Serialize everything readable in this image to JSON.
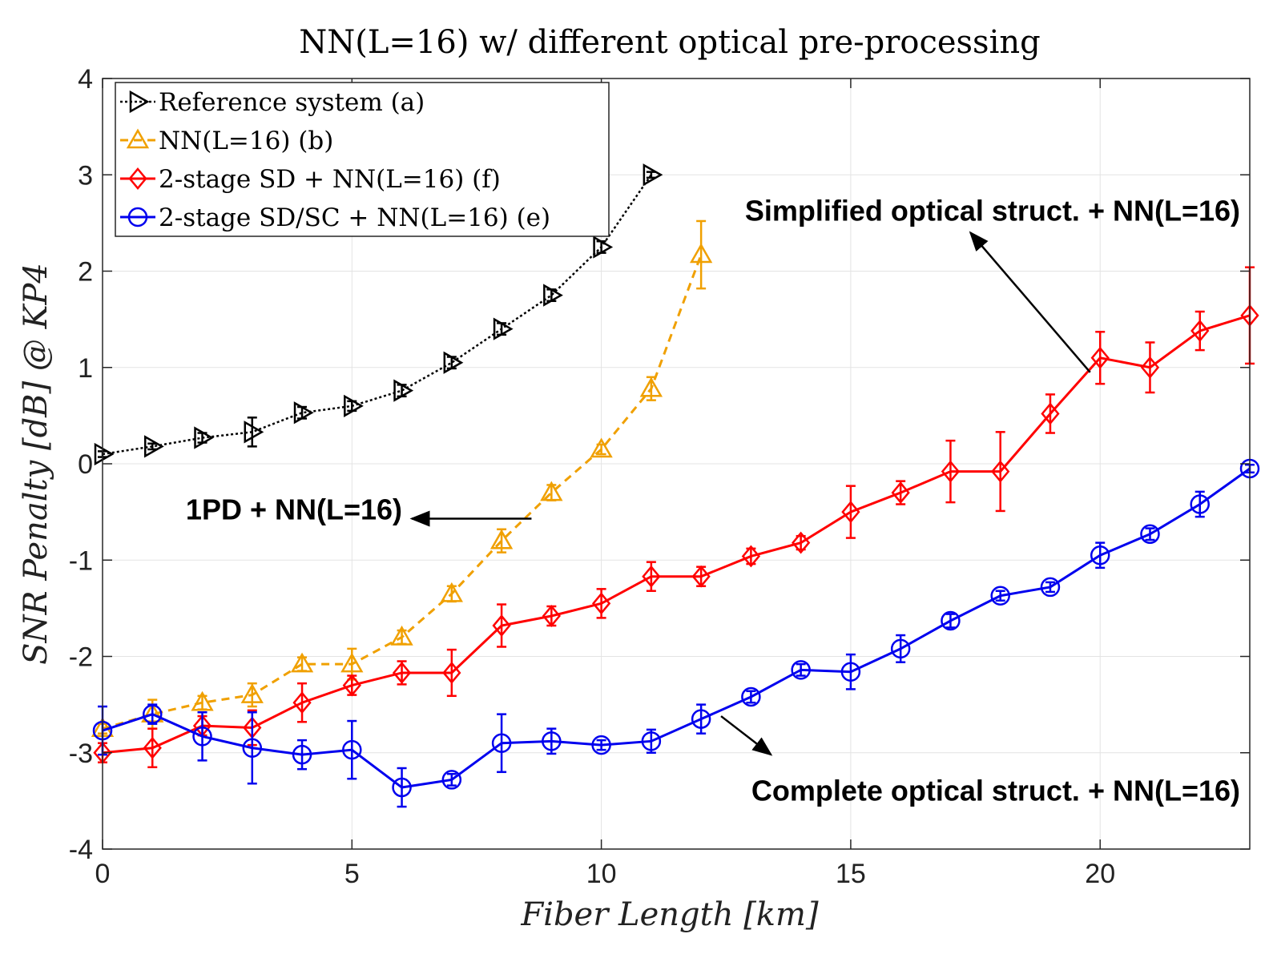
{
  "chart_data": {
    "type": "line",
    "title": "NN(L=16) w/ different optical pre-processing",
    "xlabel": "Fiber Length [km]",
    "ylabel": "SNR Penalty [dB] @ KP4",
    "xlim": [
      0,
      23
    ],
    "ylim": [
      -4,
      4
    ],
    "xticks": [
      "0",
      "5",
      "10",
      "15",
      "20"
    ],
    "yticks": [
      "-4",
      "-3",
      "-2",
      "-1",
      "0",
      "1",
      "2",
      "3",
      "4"
    ],
    "grid": true,
    "legend_position": "top-left",
    "series": [
      {
        "name": "Reference system (a)",
        "color": "#000000",
        "line_style": "dotted",
        "marker": "triangle-right",
        "x": [
          0,
          1,
          2,
          3,
          4,
          5,
          6,
          7,
          8,
          9,
          10,
          11
        ],
        "y": [
          0.1,
          0.18,
          0.27,
          0.33,
          0.53,
          0.6,
          0.76,
          1.05,
          1.4,
          1.75,
          2.25,
          3.0
        ],
        "err": [
          0.03,
          0.03,
          0.05,
          0.15,
          0.06,
          0.05,
          0.06,
          0.06,
          0.06,
          0.06,
          0.06,
          0.03
        ]
      },
      {
        "name": "NN(L=16) (b)",
        "color": "#f0a000",
        "line_style": "dashed",
        "marker": "triangle-up",
        "x": [
          0,
          1,
          2,
          3,
          4,
          5,
          6,
          7,
          8,
          9,
          10,
          11,
          12
        ],
        "y": [
          -2.75,
          -2.6,
          -2.48,
          -2.4,
          -2.08,
          -2.08,
          -1.8,
          -1.35,
          -0.8,
          -0.3,
          0.15,
          0.78,
          2.17
        ],
        "err": [
          0.05,
          0.15,
          0.07,
          0.12,
          0.07,
          0.16,
          0.07,
          0.08,
          0.12,
          0.08,
          0.05,
          0.12,
          0.35
        ]
      },
      {
        "name": "2-stage SD + NN(L=16) (f)",
        "color": "#ff0000",
        "line_style": "solid",
        "marker": "diamond",
        "x": [
          0,
          1,
          2,
          3,
          4,
          5,
          6,
          7,
          8,
          9,
          10,
          11,
          12,
          13,
          14,
          15,
          16,
          17,
          18,
          19,
          20,
          21,
          22,
          23
        ],
        "y": [
          -3.0,
          -2.95,
          -2.72,
          -2.74,
          -2.48,
          -2.3,
          -2.17,
          -2.17,
          -1.68,
          -1.58,
          -1.45,
          -1.17,
          -1.17,
          -0.96,
          -0.82,
          -0.5,
          -0.3,
          -0.08,
          -0.08,
          0.52,
          1.1,
          1.0,
          1.38,
          1.54
        ],
        "err": [
          0.1,
          0.2,
          0.1,
          0.18,
          0.2,
          0.1,
          0.12,
          0.24,
          0.22,
          0.1,
          0.15,
          0.15,
          0.1,
          0.08,
          0.07,
          0.27,
          0.12,
          0.32,
          0.41,
          0.2,
          0.27,
          0.26,
          0.2,
          0.5
        ]
      },
      {
        "name": "2-stage SD/SC + NN(L=16) (e)",
        "color": "#0000ee",
        "line_style": "solid",
        "marker": "circle",
        "x": [
          0,
          1,
          2,
          3,
          4,
          5,
          6,
          7,
          8,
          9,
          10,
          11,
          12,
          13,
          14,
          15,
          16,
          17,
          18,
          19,
          20,
          21,
          22,
          23
        ],
        "y": [
          -2.77,
          -2.6,
          -2.83,
          -2.95,
          -3.02,
          -2.97,
          -3.36,
          -3.28,
          -2.9,
          -2.88,
          -2.92,
          -2.88,
          -2.65,
          -2.42,
          -2.14,
          -2.16,
          -1.92,
          -1.63,
          -1.37,
          -1.28,
          -0.95,
          -0.73,
          -0.42,
          -0.05
        ],
        "err": [
          0.25,
          0.1,
          0.25,
          0.37,
          0.15,
          0.3,
          0.2,
          0.06,
          0.3,
          0.13,
          0.05,
          0.12,
          0.15,
          0.06,
          0.06,
          0.18,
          0.14,
          0.07,
          0.05,
          0.05,
          0.13,
          0.06,
          0.13,
          0.04
        ]
      }
    ],
    "annotations": [
      {
        "text": "Simplified optical struct. + NN(L=16)",
        "arrow_tail": [
          19.8,
          0.95
        ],
        "arrow_head": [
          17.4,
          2.4
        ],
        "anchor": "end",
        "text_pos": [
          23,
          2.63
        ]
      },
      {
        "text": "1PD + NN(L=16)",
        "arrow_tail": [
          8.6,
          -0.57
        ],
        "arrow_head": [
          6.2,
          -0.57
        ],
        "anchor": "end",
        "text_pos": [
          6.2,
          -0.47
        ]
      },
      {
        "text": "Complete optical struct. + NN(L=16)",
        "arrow_tail": [
          12.4,
          -2.62
        ],
        "arrow_head": [
          13.4,
          -3.02
        ],
        "anchor": "end",
        "text_pos": [
          23,
          -3.39
        ]
      }
    ]
  }
}
